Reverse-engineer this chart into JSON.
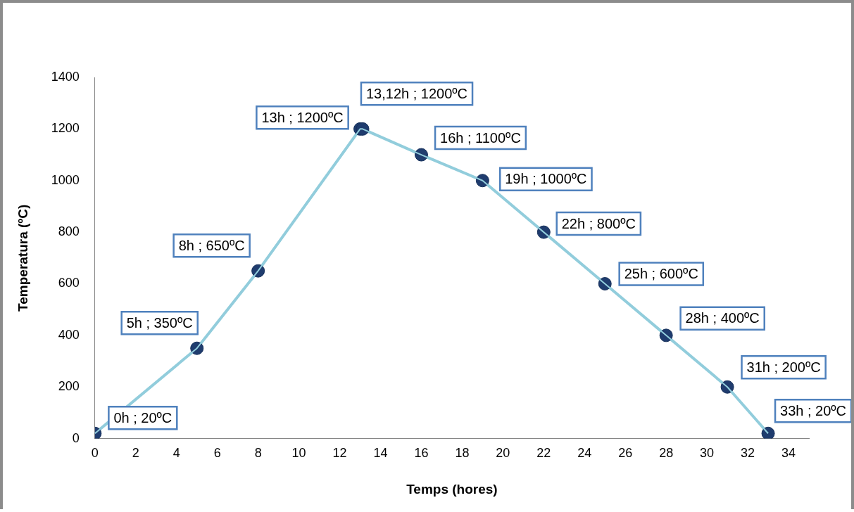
{
  "chart_data": {
    "type": "line",
    "xlabel": "Temps (hores)",
    "ylabel": "Temperatura (ºC)",
    "x": [
      0,
      5,
      8,
      13,
      13.12,
      16,
      19,
      22,
      25,
      28,
      31,
      33
    ],
    "series": [
      {
        "color": "#92cddc",
        "values": [
          20,
          350,
          650,
          1200,
          1200,
          1100,
          1000,
          800,
          600,
          400,
          200,
          20
        ],
        "value_labels": [
          "0h ; 20ºC",
          "5h ; 350ºC",
          "8h ; 650ºC",
          "13h ; 1200ºC",
          "13,12h ; 1200ºC",
          "16h ; 1100ºC",
          "19h ; 1000ºC",
          "22h ; 800ºC",
          "25h ; 600ºC",
          "28h ; 400ºC",
          "31h ; 200ºC",
          "33h ; 20ºC"
        ]
      }
    ],
    "xlim": [
      0,
      35
    ],
    "xticks": [
      0,
      2,
      4,
      6,
      8,
      10,
      12,
      14,
      16,
      18,
      20,
      22,
      24,
      26,
      28,
      30,
      32,
      34
    ],
    "ylim": [
      0,
      1400
    ],
    "yticks": [
      0,
      200,
      400,
      600,
      800,
      1000,
      1200,
      1400
    ],
    "grid": false,
    "legend": false,
    "marker": "circle",
    "line_style": "solid"
  }
}
